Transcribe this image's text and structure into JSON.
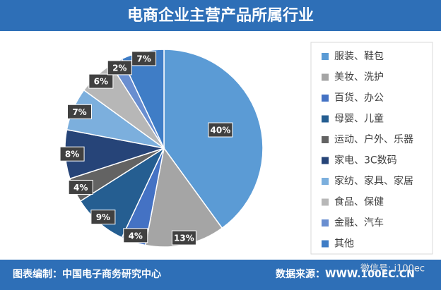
{
  "chart_data": {
    "type": "pie",
    "title": "电商企业主营产品所属行业",
    "categories": [
      "服装、鞋包",
      "美妆、洗护",
      "百货、办公",
      "母婴、儿童",
      "运动、户外、乐器",
      "家电、3C数码",
      "家纺、家具、家居",
      "食品、保健",
      "金融、汽车",
      "其他"
    ],
    "values": [
      40,
      13,
      4,
      9,
      4,
      8,
      7,
      6,
      2,
      7
    ],
    "value_labels": [
      "40%",
      "13%",
      "4%",
      "9%",
      "4%",
      "8%",
      "7%",
      "6%",
      "2%",
      "7%"
    ],
    "colors": [
      "#5b9bd5",
      "#a5a5a5",
      "#4472c4",
      "#255e91",
      "#636363",
      "#264478",
      "#7cafdd",
      "#b7b7b7",
      "#698ed0",
      "#3f7dc6"
    ],
    "legend": "right"
  },
  "footer": {
    "compiler": "图表编制：中国电子商务研究中心",
    "source": "数据来源：WWW.100EC.CN",
    "watermark": "微信号: i100ec"
  }
}
